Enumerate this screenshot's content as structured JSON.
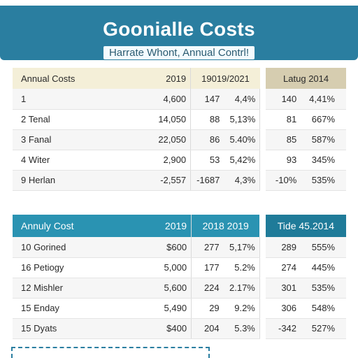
{
  "header": {
    "title": "Goonialle Costs",
    "subtitle": "Harrate Whont, Annual Contrl!"
  },
  "table1": {
    "headers": [
      "Annual Costs",
      "2019",
      "19019/2021",
      "Latug 2014"
    ],
    "rows": [
      [
        "1",
        "4,600",
        "147",
        "4,4%",
        "140",
        "4,41%"
      ],
      [
        "2  Tenal",
        "14,050",
        "88",
        "5,13%",
        "81",
        "667%"
      ],
      [
        "3  Fanal",
        "22,050",
        "86",
        "5.40%",
        "85",
        "587%"
      ],
      [
        "4  Witer",
        "2,900",
        "53",
        "5,42%",
        "93",
        "345%"
      ],
      [
        "9  Herlan",
        "-2,557",
        "-1687",
        "4,3%",
        "-10%",
        "535%"
      ]
    ]
  },
  "table2": {
    "headers": [
      "Annuly Cost",
      "2019",
      "2018 2019",
      "Tide 45.2014"
    ],
    "rows": [
      [
        "10  Gorined",
        "$600",
        "277",
        "5,17%",
        "289",
        "555%"
      ],
      [
        "16  Petiogy",
        "5,000",
        "177",
        "5.2%",
        "274",
        "445%"
      ],
      [
        "12  Mishler",
        "5,600",
        "224",
        "2.17%",
        "301",
        "535%"
      ],
      [
        "15  Enday",
        "5,490",
        "29",
        "9.2%",
        "306",
        "548%"
      ],
      [
        "15  Dyats",
        "$400",
        "204",
        "5.3%",
        "-342",
        "527%"
      ]
    ]
  }
}
